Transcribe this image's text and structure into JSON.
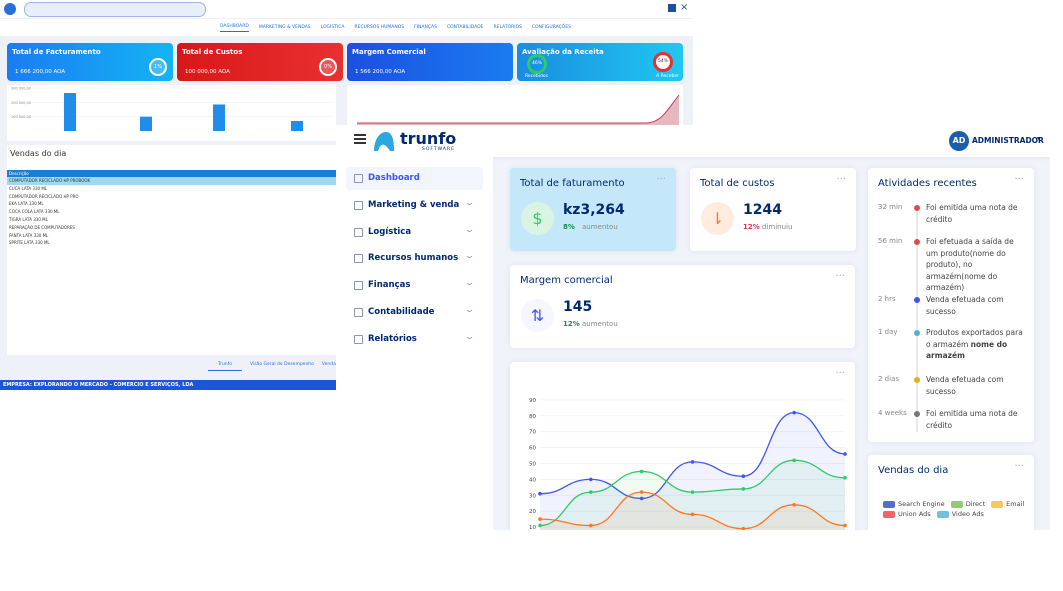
{
  "old_app": {
    "nav": [
      "DASHBOARD",
      "MARKETING & VENDAS",
      "LOGÍSTICA",
      "RECURSOS HUMANOS",
      "FINANÇAS",
      "CONTABILIDADE",
      "RELATÓRIOS",
      "CONFIGURAÇÕES"
    ],
    "cards": [
      {
        "title": "Total de Facturamento",
        "value": "1 666 200,00 AOA",
        "badge": "1%"
      },
      {
        "title": "Total de Custos",
        "value": "100 000,00 AOA",
        "badge": "0%"
      },
      {
        "title": "Margem Comercial",
        "value": "1 566 200,00 AOA"
      },
      {
        "title": "Avaliação da Receita",
        "left": "Recebidos",
        "left_badge": "46%",
        "right": "A Receber",
        "right_badge": "54%"
      }
    ],
    "bar_chart": {
      "type": "bar",
      "values": [
        265000,
        100000,
        185000,
        70000
      ],
      "ylim": [
        0,
        300000
      ],
      "yticks": [
        {
          "value": 100000,
          "label": "100 000,00"
        },
        {
          "value": 200000,
          "label": "200 000,00"
        },
        {
          "value": 300000,
          "label": "300 000,00"
        }
      ]
    },
    "sales_title": "Vendas do dia",
    "table": {
      "header": "Descrição",
      "rows": [
        "COMPUTADOR RECICLADO HP PROBOOK",
        "CUCA LATA 330 ML",
        "COMPUTADOR RECICLADO HP PRO",
        "EKA LATA 330 ML",
        "COCA COLA LATA 330 ML",
        "TIGRA LATA 330 ML",
        "REPARAÇÃO DE COMPUTADORES",
        "FANTA LATA 330 ML",
        "SPRITE LATA 330 ML"
      ]
    },
    "tabs": [
      "Trunfo",
      "Visão Geral de Desempenho",
      "Vendas e Fatura..."
    ],
    "footer": "EMPRESA: EXPLORANDO O MERCADO - COMERCIO E SERVIÇOS, LDA"
  },
  "new_app": {
    "logo": "trunfo",
    "logo_sub": "SOFTWARE",
    "avatar": "AD",
    "user": "ADMINISTRADOR",
    "menu": [
      "Dashboard",
      "Marketing & venda",
      "Logística",
      "Recursos humanos",
      "Finanças",
      "Contabilidade",
      "Relatórios"
    ],
    "cards": [
      {
        "title": "Total de faturamento",
        "value": "kz3,264",
        "pct": "8%",
        "trend": "aumentou"
      },
      {
        "title": "Total de custos",
        "value": "1244",
        "pct": "12%",
        "trend": "diminuiu"
      },
      {
        "title": "Margem comercial",
        "value": "145",
        "pct": "12%",
        "trend": "aumentou"
      }
    ],
    "chart_data": {
      "type": "line",
      "ylim": [
        5,
        95
      ],
      "yticks": [
        10,
        20,
        30,
        40,
        50,
        60,
        70,
        80,
        90
      ],
      "grid": true,
      "series": [
        {
          "color": "#4154f1",
          "values": [
            31,
            40,
            28,
            51,
            42,
            82,
            56
          ]
        },
        {
          "color": "#2eca6a",
          "values": [
            11,
            32,
            45,
            32,
            34,
            52,
            41
          ]
        },
        {
          "color": "#ff771d",
          "values": [
            15,
            11,
            32,
            18,
            9,
            24,
            11
          ]
        }
      ]
    },
    "activity_title": "Atividades recentes",
    "activities": [
      {
        "time": "32 min",
        "text": "Foi emitida uma nota de crédito",
        "color": "#e24a4a"
      },
      {
        "time": "56 min",
        "text": "Foi efetuada a saída de um produto(nome do produto), no armazém(nome do armazém)",
        "color": "#e24a4a"
      },
      {
        "time": "2 hrs",
        "text": "Venda efetuada com sucesso",
        "color": "#4154f1"
      },
      {
        "time": "1 day",
        "text": "Produtos exportados para o armazém",
        "bold": "nome do armazém",
        "color": "#4fb0e0"
      },
      {
        "time": "2 dias",
        "text": "Venda efetuada com sucesso",
        "color": "#e0b020"
      },
      {
        "time": "4 weeks",
        "text": "Foi emitida uma nota de crédito",
        "color": "#777"
      }
    ],
    "sales_title": "Vendas do dia",
    "legend": [
      {
        "name": "Search Engine",
        "color": "#5470c6"
      },
      {
        "name": "Direct",
        "color": "#91cc75"
      },
      {
        "name": "Email",
        "color": "#fac858"
      },
      {
        "name": "Union Ads",
        "color": "#ee6666"
      },
      {
        "name": "Video Ads",
        "color": "#73c0de"
      }
    ]
  }
}
